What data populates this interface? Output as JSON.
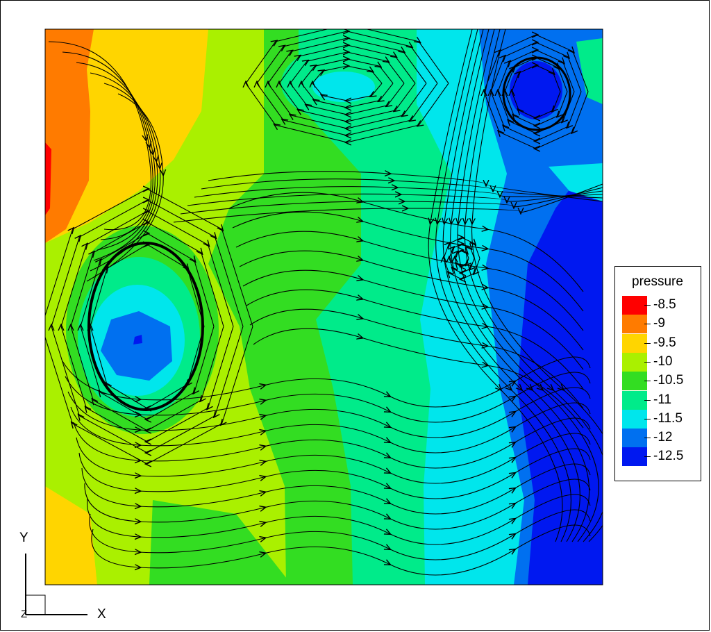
{
  "chart_data": {
    "type": "heatmap",
    "variable": "pressure",
    "title": "",
    "xlabel": "X",
    "ylabel": "Y",
    "zlabel": "Z",
    "legend": {
      "title": "pressure",
      "placement": "right",
      "levels": [
        {
          "value": "-8.5",
          "color": "#ff0000"
        },
        {
          "value": "-9",
          "color": "#ff7b00"
        },
        {
          "value": "-9.5",
          "color": "#ffd500"
        },
        {
          "value": "-10",
          "color": "#aaf000"
        },
        {
          "value": "-10.5",
          "color": "#33dd22"
        },
        {
          "value": "-11",
          "color": "#00eb8a"
        },
        {
          "value": "-11.5",
          "color": "#00e6ec"
        },
        {
          "value": "-12",
          "color": "#0070f0"
        },
        {
          "value": "-12.5",
          "color": "#0018f0"
        }
      ]
    },
    "vortices": [
      {
        "name": "left-center",
        "rotation": "counter-clockwise"
      },
      {
        "name": "top-center",
        "rotation": "clockwise"
      },
      {
        "name": "top-right",
        "rotation": "counter-clockwise"
      },
      {
        "name": "mid-right-small",
        "rotation": "counter-clockwise"
      }
    ],
    "grid": false,
    "axis_triad": true
  }
}
